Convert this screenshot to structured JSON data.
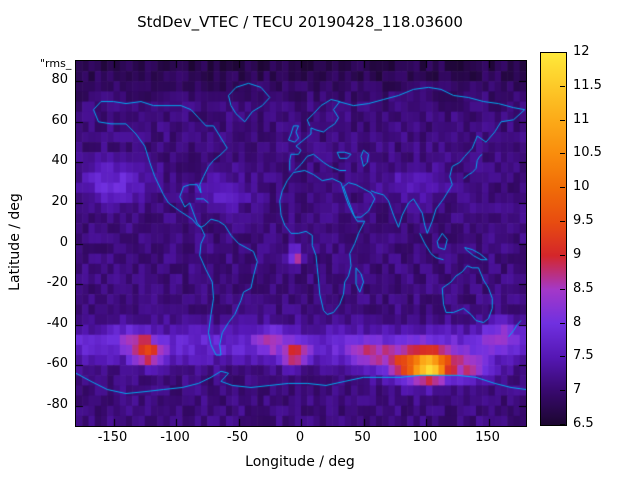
{
  "title": "StdDev_VTEC / TECU 20190428_118.03600",
  "corner_label": "\"rms_",
  "axes": {
    "x_label": "Longitude / deg",
    "y_label": "Latitude / deg",
    "x_ticks": [
      -150,
      -100,
      -50,
      0,
      50,
      100,
      150
    ],
    "y_ticks": [
      80,
      60,
      40,
      20,
      0,
      -20,
      -40,
      -60,
      -80
    ],
    "x_range": [
      -180,
      180
    ],
    "y_range": [
      -90,
      90
    ]
  },
  "colorbar": {
    "ticks": [
      6.5,
      7,
      7.5,
      8,
      8.5,
      9,
      9.5,
      10,
      10.5,
      11,
      11.5,
      12
    ],
    "range": [
      6.5,
      12
    ],
    "palette": [
      {
        "v": 6.5,
        "c": "#1c0630"
      },
      {
        "v": 7.0,
        "c": "#38096e"
      },
      {
        "v": 7.5,
        "c": "#5517b4"
      },
      {
        "v": 8.0,
        "c": "#7030e0"
      },
      {
        "v": 8.5,
        "c": "#a438c8"
      },
      {
        "v": 9.0,
        "c": "#d4262a"
      },
      {
        "v": 9.5,
        "c": "#e84c10"
      },
      {
        "v": 10.0,
        "c": "#f06c08"
      },
      {
        "v": 10.5,
        "c": "#f98c0c"
      },
      {
        "v": 11.0,
        "c": "#fcaa18"
      },
      {
        "v": 11.5,
        "c": "#fdc928"
      },
      {
        "v": 12.0,
        "c": "#ffe93a"
      }
    ]
  },
  "chart_data": {
    "type": "heatmap",
    "title": "StdDev_VTEC / TECU 20190428_118.03600",
    "xlabel": "Longitude / deg",
    "ylabel": "Latitude / deg",
    "units": "TECU",
    "x_range": [
      -180,
      180
    ],
    "y_range": [
      -90,
      90
    ],
    "value_range": [
      6.5,
      12
    ],
    "grid_resolution_deg": 5,
    "background_value": 7.1,
    "noise_amplitude": 0.22,
    "noise_seed": 42,
    "hotspots": [
      {
        "lon": 100,
        "lat": -60,
        "amp": 3.4,
        "slon": 26,
        "slat": 8
      },
      {
        "lon": 103,
        "lat": -62,
        "amp": 1.8,
        "slon": 9,
        "slat": 4
      },
      {
        "lon": 140,
        "lat": -62,
        "amp": 1.0,
        "slon": 14,
        "slat": 5
      },
      {
        "lon": -122,
        "lat": -54,
        "amp": 1.8,
        "slon": 12,
        "slat": 6
      },
      {
        "lon": -135,
        "lat": -47,
        "amp": 0.8,
        "slon": 14,
        "slat": 6
      },
      {
        "lon": -5,
        "lat": -55,
        "amp": 1.6,
        "slon": 10,
        "slat": 5
      },
      {
        "lon": -25,
        "lat": -48,
        "amp": 0.9,
        "slon": 12,
        "slat": 6
      },
      {
        "lon": 55,
        "lat": -55,
        "amp": 1.0,
        "slon": 20,
        "slat": 6
      },
      {
        "lon": -4,
        "lat": -6,
        "amp": 1.8,
        "slon": 5,
        "slat": 4
      },
      {
        "lon": 160,
        "lat": -45,
        "amp": 0.9,
        "slon": 14,
        "slat": 7
      },
      {
        "lon": -150,
        "lat": 30,
        "amp": 0.8,
        "slon": 26,
        "slat": 10
      },
      {
        "lon": -60,
        "lat": 25,
        "amp": 0.6,
        "slon": 20,
        "slat": 8
      },
      {
        "lon": 90,
        "lat": 30,
        "amp": 0.5,
        "slon": 24,
        "slat": 8
      },
      {
        "lon": 0,
        "lat": -50,
        "amp": 0.7,
        "slon": 100000,
        "slat": 9
      },
      {
        "lon": 0,
        "lat": 88,
        "amp": -0.35,
        "slon": 100000,
        "slat": 14
      }
    ],
    "coastline_color": "#00aaee",
    "coastlines": [
      [
        [
          -166,
          66
        ],
        [
          -160,
          70
        ],
        [
          -150,
          70
        ],
        [
          -140,
          69
        ],
        [
          -128,
          70
        ],
        [
          -118,
          68
        ],
        [
          -108,
          68
        ],
        [
          -96,
          68
        ],
        [
          -88,
          66
        ],
        [
          -82,
          62
        ],
        [
          -76,
          58
        ],
        [
          -70,
          58
        ],
        [
          -64,
          52
        ],
        [
          -59,
          47
        ],
        [
          -64,
          44
        ],
        [
          -70,
          41
        ],
        [
          -74,
          38
        ],
        [
          -78,
          33
        ],
        [
          -81,
          29
        ],
        [
          -80,
          25
        ],
        [
          -83,
          29
        ],
        [
          -89,
          29
        ],
        [
          -94,
          28
        ],
        [
          -97,
          23
        ],
        [
          -93,
          18
        ],
        [
          -89,
          20
        ],
        [
          -86,
          15
        ],
        [
          -83,
          10
        ],
        [
          -80,
          8
        ]
      ],
      [
        [
          -166,
          66
        ],
        [
          -162,
          60
        ],
        [
          -152,
          59
        ],
        [
          -140,
          59
        ],
        [
          -132,
          54
        ],
        [
          -125,
          48
        ],
        [
          -121,
          40
        ],
        [
          -117,
          33
        ],
        [
          -110,
          24
        ],
        [
          -106,
          20
        ],
        [
          -97,
          16
        ],
        [
          -92,
          14
        ],
        [
          -87,
          12
        ],
        [
          -83,
          9
        ],
        [
          -80,
          8
        ]
      ],
      [
        [
          -80,
          8
        ],
        [
          -77,
          4
        ],
        [
          -80,
          0
        ],
        [
          -81,
          -6
        ],
        [
          -76,
          -13
        ],
        [
          -71,
          -19
        ],
        [
          -70,
          -27
        ],
        [
          -72,
          -35
        ],
        [
          -74,
          -44
        ],
        [
          -72,
          -50
        ],
        [
          -68,
          -55
        ],
        [
          -64,
          -55
        ],
        [
          -65,
          -50
        ],
        [
          -63,
          -44
        ],
        [
          -58,
          -39
        ],
        [
          -53,
          -35
        ],
        [
          -48,
          -28
        ],
        [
          -46,
          -24
        ],
        [
          -40,
          -22
        ],
        [
          -38,
          -16
        ],
        [
          -35,
          -9
        ],
        [
          -38,
          -4
        ],
        [
          -44,
          -2
        ],
        [
          -50,
          0
        ],
        [
          -56,
          4
        ],
        [
          -61,
          9
        ],
        [
          -66,
          11
        ],
        [
          -72,
          12
        ],
        [
          -77,
          9
        ],
        [
          -80,
          8
        ]
      ],
      [
        [
          -45,
          60
        ],
        [
          -52,
          64
        ],
        [
          -56,
          68
        ],
        [
          -58,
          73
        ],
        [
          -52,
          77
        ],
        [
          -42,
          79
        ],
        [
          -32,
          77
        ],
        [
          -25,
          72
        ],
        [
          -31,
          68
        ],
        [
          -39,
          65
        ],
        [
          -45,
          60
        ]
      ],
      [
        [
          -9,
          36
        ],
        [
          -9,
          41
        ],
        [
          -8,
          44
        ],
        [
          -2,
          44
        ],
        [
          0,
          46
        ],
        [
          -4,
          48
        ],
        [
          0,
          50
        ],
        [
          4,
          52
        ],
        [
          8,
          54
        ],
        [
          8,
          57
        ],
        [
          12,
          56
        ],
        [
          18,
          55
        ],
        [
          22,
          57
        ],
        [
          27,
          59
        ],
        [
          30,
          62
        ],
        [
          26,
          66
        ],
        [
          31,
          70
        ],
        [
          24,
          71
        ],
        [
          16,
          68
        ],
        [
          10,
          64
        ],
        [
          5,
          61
        ],
        [
          7,
          58
        ]
      ],
      [
        [
          -5,
          36
        ],
        [
          0,
          39
        ],
        [
          5,
          43
        ],
        [
          10,
          44
        ],
        [
          14,
          42
        ],
        [
          18,
          40
        ],
        [
          23,
          38
        ],
        [
          27,
          37
        ],
        [
          31,
          36
        ],
        [
          36,
          36
        ]
      ],
      [
        [
          -6,
          35
        ],
        [
          -11,
          31
        ],
        [
          -15,
          26
        ],
        [
          -17,
          21
        ],
        [
          -16,
          14
        ],
        [
          -13,
          9
        ],
        [
          -8,
          5
        ],
        [
          -2,
          5
        ],
        [
          4,
          6
        ],
        [
          9,
          4
        ],
        [
          9,
          -1
        ],
        [
          12,
          -6
        ],
        [
          13,
          -12
        ],
        [
          14,
          -18
        ],
        [
          15,
          -25
        ],
        [
          18,
          -33
        ],
        [
          21,
          -35
        ],
        [
          26,
          -34
        ],
        [
          31,
          -30
        ],
        [
          34,
          -25
        ],
        [
          35,
          -19
        ],
        [
          38,
          -16
        ],
        [
          40,
          -11
        ],
        [
          39,
          -5
        ],
        [
          43,
          0
        ],
        [
          46,
          5
        ],
        [
          51,
          11
        ],
        [
          45,
          11
        ],
        [
          42,
          14
        ],
        [
          38,
          19
        ],
        [
          35,
          24
        ],
        [
          32,
          30
        ],
        [
          25,
          32
        ],
        [
          17,
          31
        ],
        [
          10,
          34
        ],
        [
          3,
          36
        ],
        [
          -6,
          35
        ]
      ],
      [
        [
          34,
          28
        ],
        [
          38,
          21
        ],
        [
          43,
          13
        ],
        [
          48,
          13
        ],
        [
          54,
          16
        ],
        [
          59,
          22
        ],
        [
          56,
          25
        ],
        [
          50,
          27
        ],
        [
          44,
          29
        ],
        [
          38,
          30
        ],
        [
          34,
          28
        ]
      ],
      [
        [
          30,
          70
        ],
        [
          42,
          68
        ],
        [
          54,
          69
        ],
        [
          66,
          71
        ],
        [
          78,
          73
        ],
        [
          90,
          76
        ],
        [
          102,
          77
        ],
        [
          112,
          76
        ],
        [
          122,
          73
        ],
        [
          134,
          72
        ],
        [
          146,
          70
        ],
        [
          158,
          69
        ],
        [
          170,
          67
        ],
        [
          179,
          66
        ]
      ],
      [
        [
          179,
          66
        ],
        [
          170,
          61
        ],
        [
          160,
          60
        ],
        [
          155,
          55
        ],
        [
          148,
          50
        ],
        [
          141,
          53
        ],
        [
          137,
          47
        ],
        [
          131,
          43
        ],
        [
          127,
          40
        ],
        [
          121,
          38
        ],
        [
          119,
          33
        ],
        [
          121,
          29
        ],
        [
          114,
          22
        ],
        [
          108,
          17
        ],
        [
          105,
          11
        ],
        [
          101,
          5
        ],
        [
          99,
          9
        ],
        [
          97,
          15
        ],
        [
          93,
          19
        ],
        [
          90,
          22
        ],
        [
          86,
          20
        ],
        [
          81,
          14
        ],
        [
          78,
          8
        ],
        [
          74,
          14
        ],
        [
          70,
          21
        ],
        [
          66,
          24
        ],
        [
          60,
          25
        ],
        [
          56,
          26
        ]
      ],
      [
        [
          130,
          32
        ],
        [
          134,
          34
        ],
        [
          137,
          35
        ],
        [
          140,
          37
        ],
        [
          141,
          41
        ],
        [
          143,
          43
        ],
        [
          145,
          44
        ]
      ],
      [
        [
          -5,
          50
        ],
        [
          -2,
          52
        ],
        [
          -4,
          55
        ],
        [
          -2,
          58
        ],
        [
          -6,
          58
        ],
        [
          -8,
          54
        ],
        [
          -10,
          51
        ],
        [
          -5,
          50
        ]
      ],
      [
        [
          95,
          5
        ],
        [
          99,
          0
        ],
        [
          104,
          -5
        ],
        [
          108,
          -7
        ],
        [
          114,
          -8
        ]
      ],
      [
        [
          109,
          1
        ],
        [
          113,
          5
        ],
        [
          117,
          2
        ],
        [
          115,
          -3
        ],
        [
          110,
          -2
        ],
        [
          109,
          1
        ]
      ],
      [
        [
          131,
          -2
        ],
        [
          137,
          -3
        ],
        [
          143,
          -5
        ],
        [
          149,
          -8
        ],
        [
          144,
          -8
        ],
        [
          138,
          -6
        ],
        [
          132,
          -3
        ],
        [
          131,
          -2
        ]
      ],
      [
        [
          113,
          -22
        ],
        [
          114,
          -30
        ],
        [
          116,
          -34
        ],
        [
          122,
          -34
        ],
        [
          130,
          -32
        ],
        [
          136,
          -35
        ],
        [
          140,
          -38
        ],
        [
          146,
          -39
        ],
        [
          150,
          -37
        ],
        [
          153,
          -32
        ],
        [
          153,
          -27
        ],
        [
          150,
          -22
        ],
        [
          146,
          -18
        ],
        [
          142,
          -12
        ],
        [
          137,
          -12
        ],
        [
          133,
          -11
        ],
        [
          129,
          -14
        ],
        [
          124,
          -16
        ],
        [
          120,
          -19
        ],
        [
          113,
          -22
        ]
      ],
      [
        [
          166,
          -46
        ],
        [
          170,
          -43
        ],
        [
          173,
          -40
        ],
        [
          176,
          -38
        ]
      ],
      [
        [
          44,
          -12
        ],
        [
          48,
          -15
        ],
        [
          50,
          -19
        ],
        [
          47,
          -24
        ],
        [
          44,
          -20
        ],
        [
          44,
          -12
        ]
      ],
      [
        [
          -180,
          -64
        ],
        [
          -168,
          -68
        ],
        [
          -155,
          -72
        ],
        [
          -140,
          -74
        ],
        [
          -124,
          -73
        ],
        [
          -110,
          -72
        ],
        [
          -95,
          -71
        ],
        [
          -82,
          -69
        ],
        [
          -72,
          -66
        ],
        [
          -64,
          -63
        ],
        [
          -58,
          -64
        ],
        [
          -64,
          -68
        ],
        [
          -55,
          -70
        ],
        [
          -40,
          -71
        ],
        [
          -25,
          -70
        ],
        [
          -10,
          -69
        ],
        [
          5,
          -69
        ],
        [
          20,
          -70
        ],
        [
          35,
          -68
        ],
        [
          50,
          -66
        ],
        [
          65,
          -66
        ],
        [
          80,
          -66
        ],
        [
          95,
          -65
        ],
        [
          110,
          -65
        ],
        [
          125,
          -65
        ],
        [
          140,
          -66
        ],
        [
          155,
          -69
        ],
        [
          168,
          -71
        ],
        [
          180,
          -72
        ]
      ],
      [
        [
          50,
          46
        ],
        [
          54,
          44
        ],
        [
          53,
          40
        ],
        [
          50,
          38
        ],
        [
          48,
          43
        ],
        [
          50,
          46
        ]
      ],
      [
        [
          29,
          45
        ],
        [
          35,
          45
        ],
        [
          40,
          44
        ],
        [
          37,
          42
        ],
        [
          31,
          42
        ],
        [
          29,
          45
        ]
      ],
      [
        [
          -84,
          22
        ],
        [
          -78,
          22
        ],
        [
          -74,
          20
        ]
      ]
    ]
  }
}
